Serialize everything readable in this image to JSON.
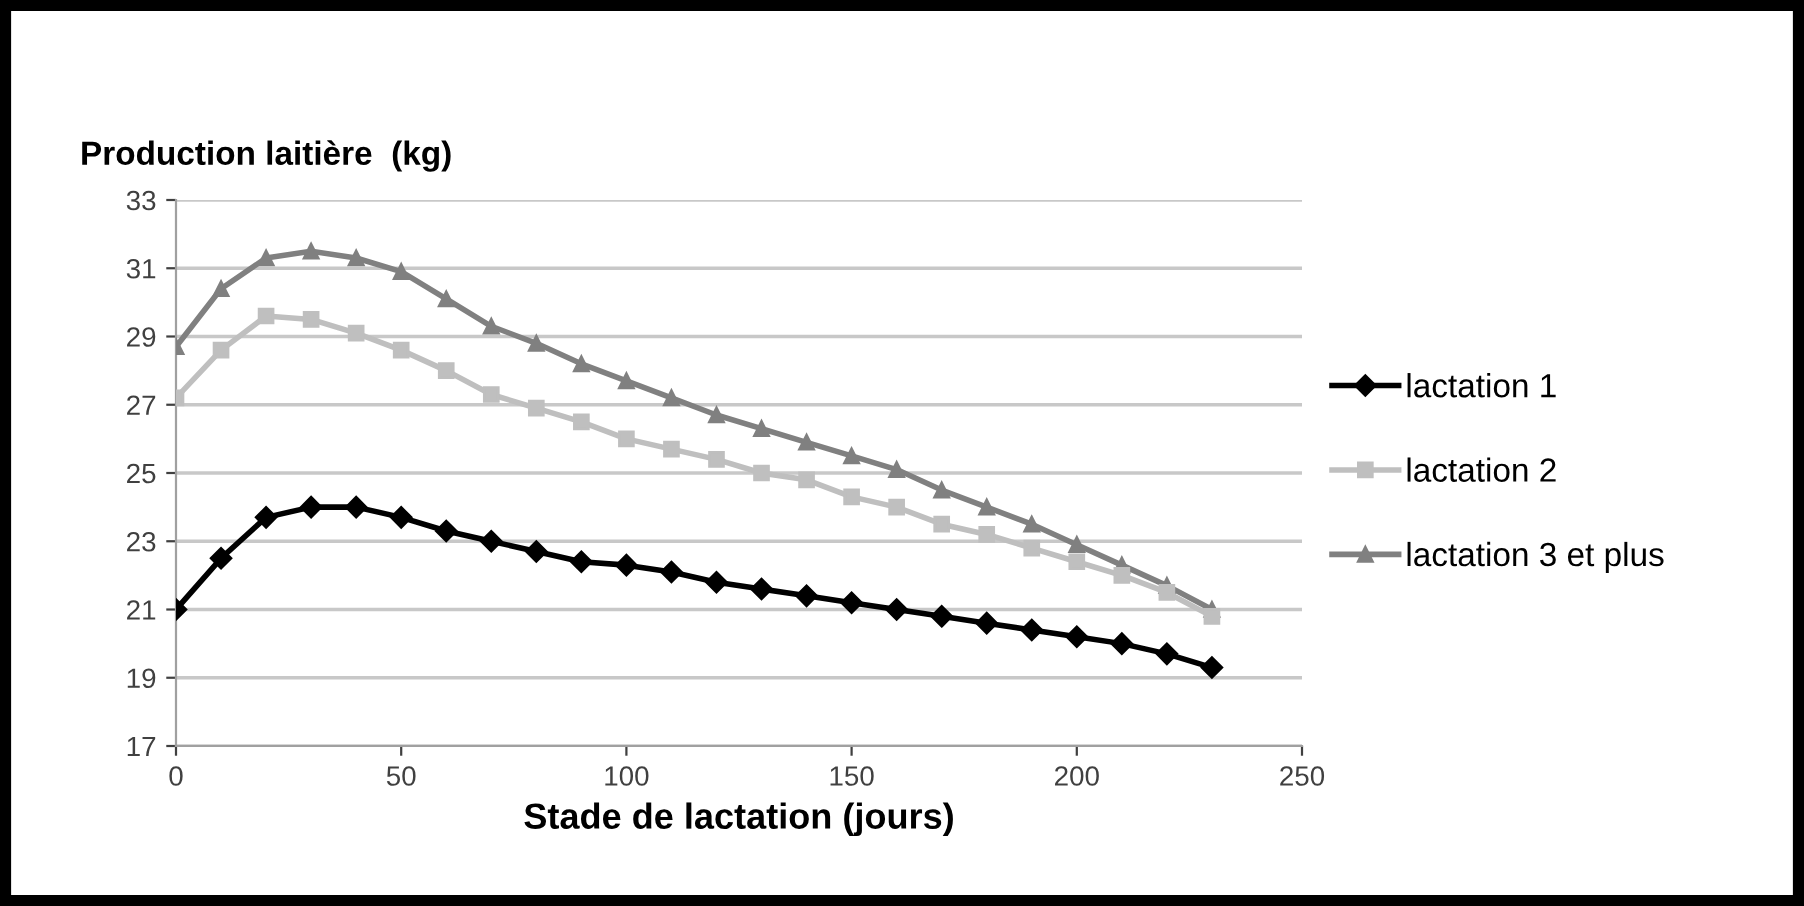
{
  "chart_data": {
    "type": "line",
    "title": "Production laitière  (kg)",
    "xlabel": "Stade de lactation (jours)",
    "x": [
      0,
      10,
      20,
      30,
      40,
      50,
      60,
      70,
      80,
      90,
      100,
      110,
      120,
      130,
      140,
      150,
      160,
      170,
      180,
      190,
      200,
      210,
      220,
      230
    ],
    "series": [
      {
        "name": "lactation 1",
        "color": "#000000",
        "marker": "diamond",
        "values": [
          21.0,
          22.5,
          23.7,
          24.0,
          24.0,
          23.7,
          23.3,
          23.0,
          22.7,
          22.4,
          22.3,
          22.1,
          21.8,
          21.6,
          21.4,
          21.2,
          21.0,
          20.8,
          20.6,
          20.4,
          20.2,
          20.0,
          19.7,
          19.3
        ]
      },
      {
        "name": "lactation 2",
        "color": "#bfbfbf",
        "marker": "square",
        "values": [
          27.2,
          28.6,
          29.6,
          29.5,
          29.1,
          28.6,
          28.0,
          27.3,
          26.9,
          26.5,
          26.0,
          25.7,
          25.4,
          25.0,
          24.8,
          24.3,
          24.0,
          23.5,
          23.2,
          22.8,
          22.4,
          22.0,
          21.5,
          20.8
        ]
      },
      {
        "name": "lactation 3 et plus",
        "color": "#808080",
        "marker": "triangle",
        "values": [
          28.7,
          30.4,
          31.3,
          31.5,
          31.3,
          30.9,
          30.1,
          29.3,
          28.8,
          28.2,
          27.7,
          27.2,
          26.7,
          26.3,
          25.9,
          25.5,
          25.1,
          24.5,
          24.0,
          23.5,
          22.9,
          22.3,
          21.7,
          21.0
        ]
      }
    ],
    "xlim": [
      0,
      250
    ],
    "xticks": [
      0,
      50,
      100,
      150,
      200,
      250
    ],
    "ylim": [
      17,
      33
    ],
    "yticks": [
      17,
      19,
      21,
      23,
      25,
      27,
      29,
      31,
      33
    ],
    "grid": "y",
    "legend": "right",
    "line_style": "solid"
  }
}
